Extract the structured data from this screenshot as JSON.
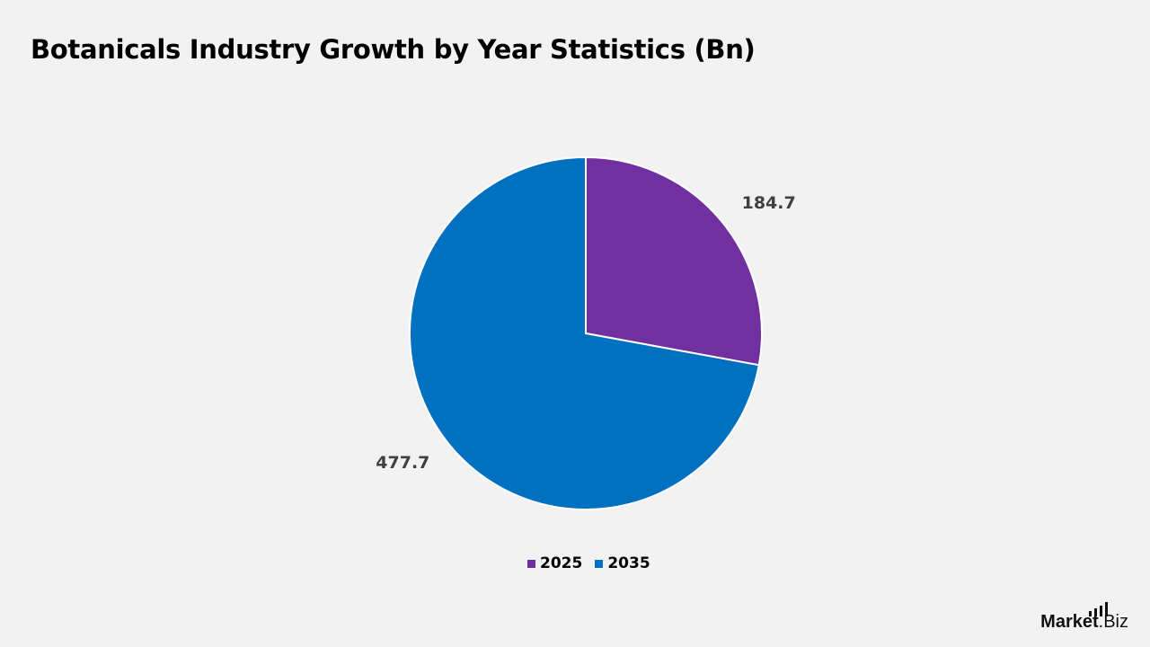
{
  "chart_data": {
    "type": "pie",
    "title": "Botanicals Industry Growth by Year Statistics (Bn)",
    "categories": [
      "2025",
      "2035"
    ],
    "values": [
      184.7,
      477.7
    ],
    "colors": [
      "#7030a0",
      "#0070c0"
    ],
    "data_labels": [
      "184.7",
      "477.7"
    ],
    "legend": {
      "position": "bottom",
      "entries": [
        "2025",
        "2035"
      ]
    },
    "start_angle": "top, clockwise"
  },
  "branding": {
    "bold": "Market",
    "rest": ".Biz"
  }
}
